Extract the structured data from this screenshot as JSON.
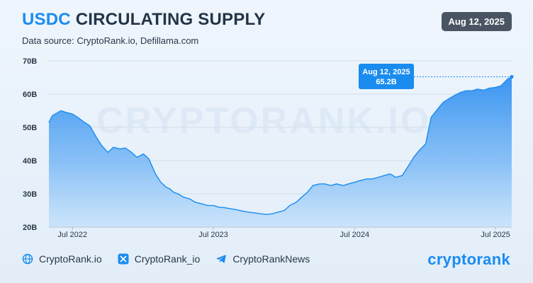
{
  "header": {
    "title_brand": "USDC",
    "title_rest": "CIRCULATING SUPPLY",
    "source": "Data source: CryptoRank.io, Defillama.com",
    "date_badge": "Aug 12, 2025"
  },
  "watermark": "CRYPTORANK.IO",
  "tooltip": {
    "date": "Aug 12, 2025",
    "value": "65.2B"
  },
  "footer": {
    "website": "CryptoRank.io",
    "twitter": "CryptoRank_io",
    "telegram": "CryptoRankNews",
    "logo": "cryptorank"
  },
  "colors": {
    "accent": "#1a8cf0",
    "area_top": "#2f8ff0",
    "area_bottom": "#b9dcfb",
    "badge": "#4a5463"
  },
  "icons": [
    "globe-icon",
    "x-twitter-icon",
    "telegram-icon"
  ],
  "chart_data": {
    "type": "area",
    "title": "USDC CIRCULATING SUPPLY",
    "xlabel": "",
    "ylabel": "",
    "ylim": [
      20,
      70
    ],
    "y_ticks": [
      "20B",
      "30B",
      "40B",
      "50B",
      "60B",
      "70B"
    ],
    "x_ticks": [
      "Jul 2022",
      "Jul 2023",
      "Jul 2024",
      "Jul 2025"
    ],
    "grid": true,
    "x": [
      "2022-05-01",
      "2022-05-10",
      "2022-05-20",
      "2022-06-01",
      "2022-06-15",
      "2022-07-01",
      "2022-07-15",
      "2022-08-01",
      "2022-08-15",
      "2022-09-01",
      "2022-09-15",
      "2022-10-01",
      "2022-10-15",
      "2022-11-01",
      "2022-11-15",
      "2022-12-01",
      "2022-12-15",
      "2023-01-01",
      "2023-01-15",
      "2023-02-01",
      "2023-02-15",
      "2023-03-01",
      "2023-03-10",
      "2023-03-20",
      "2023-04-01",
      "2023-04-15",
      "2023-05-01",
      "2023-05-15",
      "2023-06-01",
      "2023-06-15",
      "2023-07-01",
      "2023-07-15",
      "2023-08-01",
      "2023-08-15",
      "2023-09-01",
      "2023-09-15",
      "2023-10-01",
      "2023-10-15",
      "2023-11-01",
      "2023-11-15",
      "2023-12-01",
      "2023-12-15",
      "2024-01-01",
      "2024-01-15",
      "2024-02-01",
      "2024-02-15",
      "2024-03-01",
      "2024-03-15",
      "2024-04-01",
      "2024-04-15",
      "2024-05-01",
      "2024-05-15",
      "2024-06-01",
      "2024-06-15",
      "2024-07-01",
      "2024-07-15",
      "2024-08-01",
      "2024-08-15",
      "2024-09-01",
      "2024-09-15",
      "2024-10-01",
      "2024-10-15",
      "2024-11-01",
      "2024-11-15",
      "2024-12-01",
      "2024-12-15",
      "2025-01-01",
      "2025-01-15",
      "2025-02-01",
      "2025-02-15",
      "2025-03-01",
      "2025-03-15",
      "2025-04-01",
      "2025-04-15",
      "2025-05-01",
      "2025-05-15",
      "2025-06-01",
      "2025-06-15",
      "2025-07-01",
      "2025-07-15",
      "2025-08-01",
      "2025-08-12"
    ],
    "series": [
      {
        "values": [
          51.5,
          53.5,
          54.2,
          55.0,
          54.5,
          54.0,
          53.0,
          51.5,
          50.5,
          47.0,
          44.5,
          42.5,
          44.0,
          43.5,
          43.8,
          42.5,
          41.0,
          42.0,
          40.5,
          36.0,
          33.5,
          32.0,
          31.5,
          30.5,
          30.0,
          29.0,
          28.5,
          27.5,
          27.0,
          26.5,
          26.5,
          26.0,
          25.8,
          25.5,
          25.2,
          24.8,
          24.5,
          24.3,
          24.0,
          23.8,
          24.0,
          24.5,
          25.0,
          26.5,
          27.5,
          29.0,
          30.5,
          32.5,
          33.0,
          33.0,
          32.5,
          33.0,
          32.5,
          33.0,
          33.5,
          34.0,
          34.5,
          34.5,
          35.0,
          35.5,
          36.0,
          35.0,
          35.5,
          38.0,
          41.0,
          43.0,
          45.0,
          53.0,
          55.5,
          57.5,
          58.5,
          59.5,
          60.5,
          61.0,
          61.0,
          61.5,
          61.2,
          61.8,
          62.0,
          62.5,
          64.5,
          65.2
        ]
      }
    ]
  }
}
